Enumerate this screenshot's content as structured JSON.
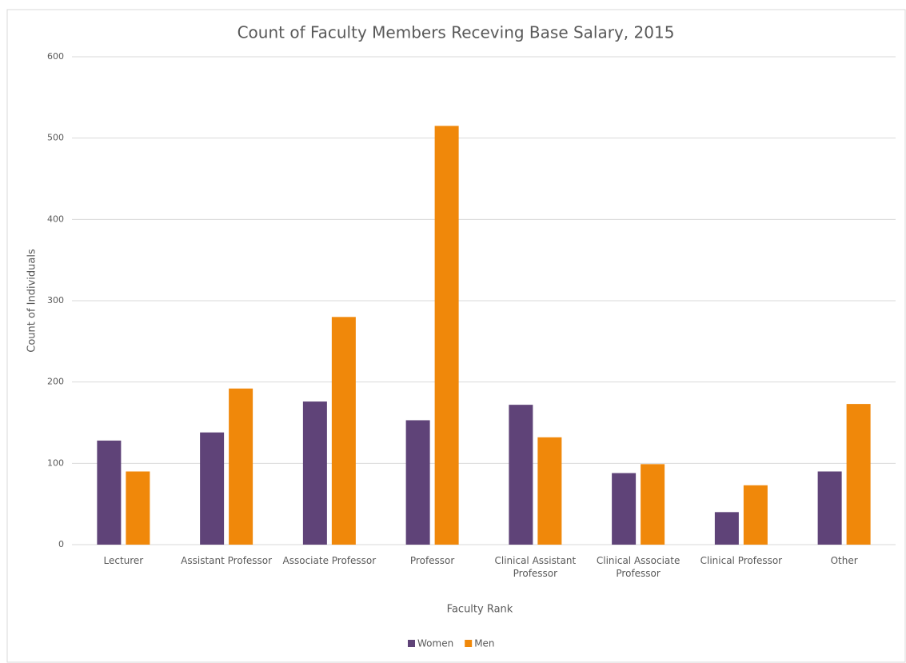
{
  "chart_data": {
    "type": "bar",
    "title": "Count of Faculty Members Receving Base Salary, 2015",
    "x_label": "Faculty Rank",
    "y_label": "Count of Individuals",
    "categories": [
      "Lecturer",
      "Assistant Professor",
      "Associate Professor",
      "Professor",
      "Clinical Assistant Professor",
      "Clinical Associate Professor",
      "Clinical Professor",
      "Other"
    ],
    "series": [
      {
        "name": "Women",
        "color": "#5f4378",
        "values": [
          128,
          138,
          176,
          153,
          172,
          88,
          40,
          90
        ]
      },
      {
        "name": "Men",
        "color": "#f0880a",
        "values": [
          90,
          192,
          280,
          515,
          132,
          99,
          73,
          173
        ]
      }
    ],
    "ylim": [
      0,
      600
    ],
    "yticks": [
      0,
      100,
      200,
      300,
      400,
      500,
      600
    ],
    "grid": true,
    "legend": "bottom"
  }
}
